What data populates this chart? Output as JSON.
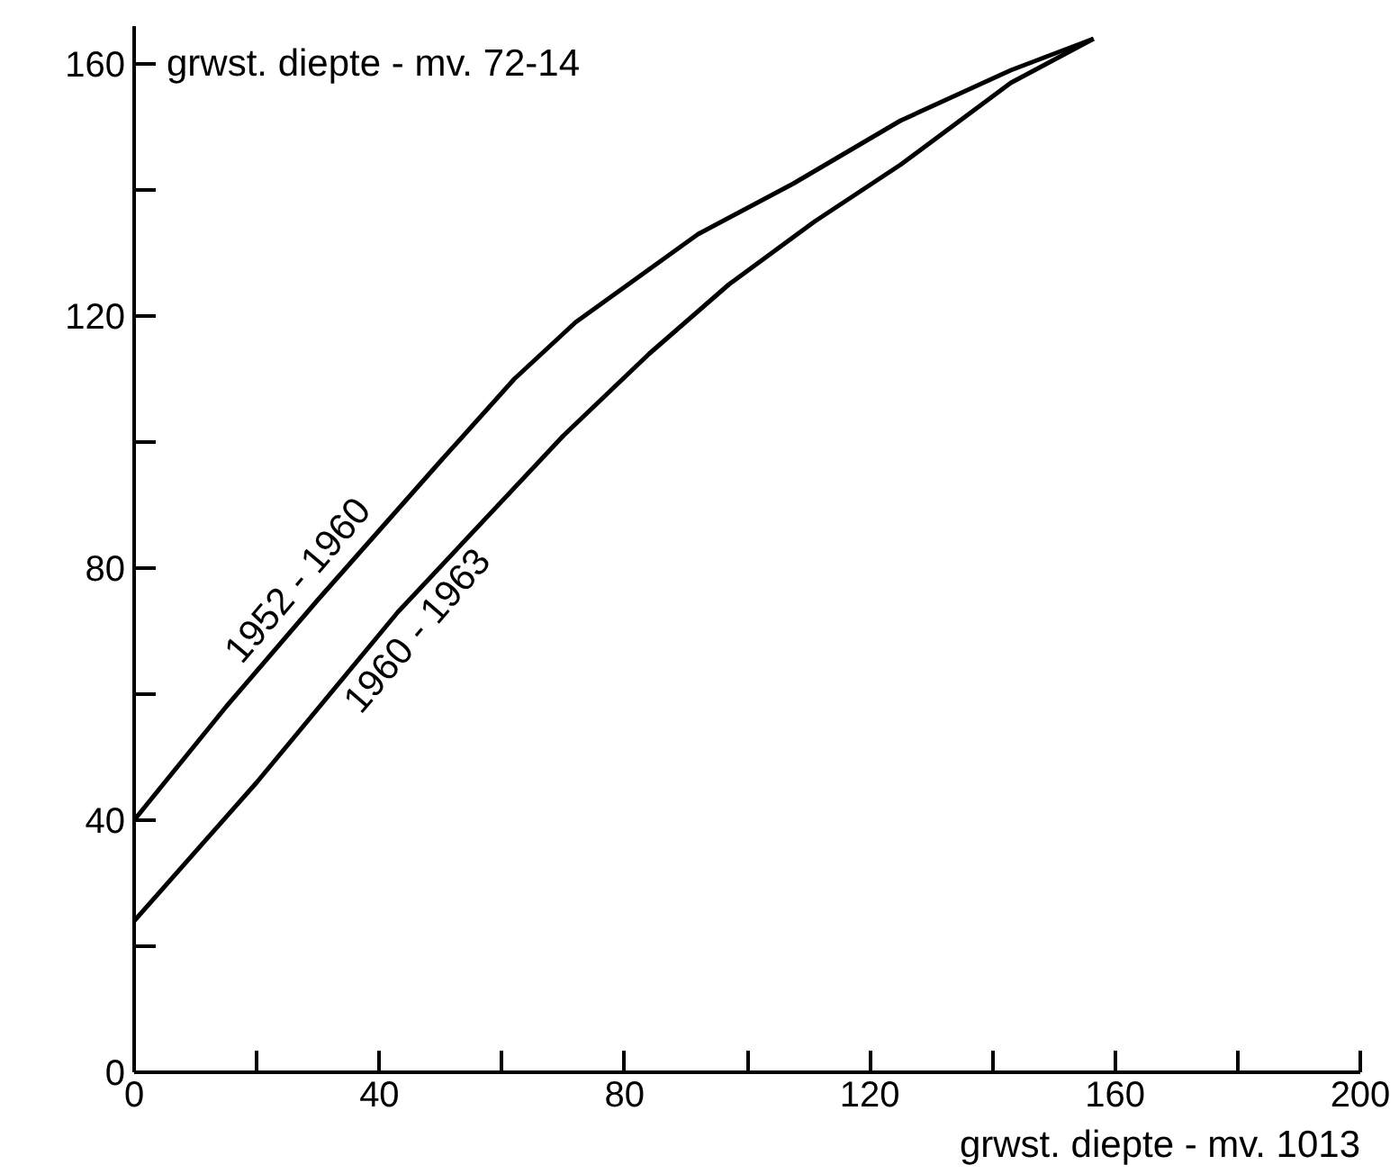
{
  "chart_data": {
    "type": "line",
    "xlabel": "grwst. diepte - mv. 1013",
    "ylabel": "grwst. diepte - mv. 72-14",
    "xlim": [
      0,
      200
    ],
    "ylim": [
      0,
      166
    ],
    "xticks": [
      0,
      {
        "value": 20,
        "label": null
      },
      40,
      {
        "value": 60,
        "label": null
      },
      80,
      {
        "value": 100,
        "label": null
      },
      120,
      {
        "value": 140,
        "label": null
      },
      160,
      {
        "value": 180,
        "label": null
      },
      200
    ],
    "yticks": [
      0,
      {
        "value": 20,
        "label": null
      },
      40,
      {
        "value": 60,
        "label": null
      },
      80,
      {
        "value": 100,
        "label": null
      },
      120,
      {
        "value": 140,
        "label": null
      },
      160
    ],
    "grid": false,
    "marker": "none",
    "line_style": "solid",
    "series": [
      {
        "name": "1952 - 1960",
        "color": "#000000",
        "x": [
          0,
          15,
          30,
          50,
          62,
          72,
          82,
          92,
          107.5,
          125,
          143,
          156.5
        ],
        "values": [
          40,
          58,
          75,
          97,
          110,
          119,
          126,
          133,
          141,
          151,
          159,
          164
        ]
      },
      {
        "name": "1960 - 1963",
        "color": "#000000",
        "x": [
          0,
          20,
          43,
          70,
          84,
          97,
          111,
          125,
          143,
          156.5
        ],
        "values": [
          24,
          46,
          73,
          101,
          114,
          125,
          135,
          144,
          157,
          164
        ]
      }
    ]
  }
}
